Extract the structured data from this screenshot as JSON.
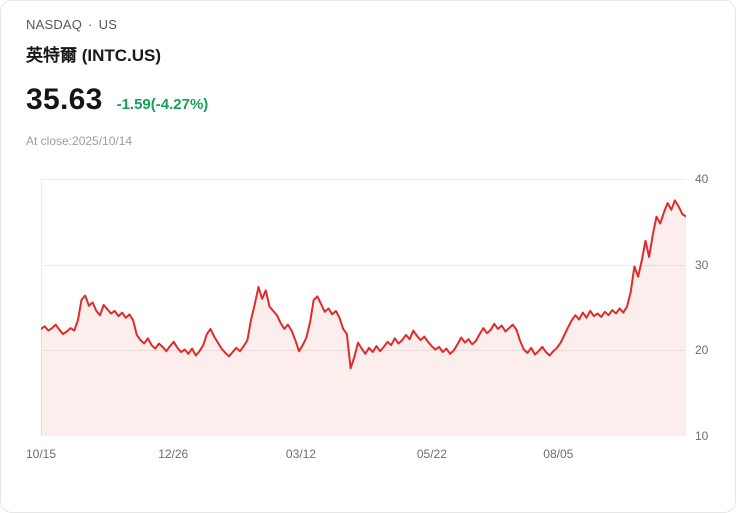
{
  "header": {
    "exchange": "NASDAQ",
    "separator": "·",
    "region": "US",
    "title": "英特爾 (INTC.US)"
  },
  "quote": {
    "price": "35.63",
    "change": "-1.59(-4.27%)",
    "change_color": "#18a058",
    "as_of": "At close:2025/10/14"
  },
  "chart_data": {
    "type": "line",
    "title": "",
    "xlabel": "",
    "ylabel": "",
    "ylim": [
      10,
      40
    ],
    "y_ticks": [
      "10",
      "20",
      "30",
      "40"
    ],
    "x_tick_labels": [
      "10/15",
      "12/26",
      "03/12",
      "05/22",
      "08/05"
    ],
    "x_tick_positions": [
      0.0,
      0.205,
      0.403,
      0.606,
      0.802
    ],
    "grid": true,
    "legend": false,
    "line_color": "#e12b2b",
    "fill_color": "rgba(225,43,43,0.08)",
    "values": [
      22.5,
      22.8,
      22.3,
      22.6,
      23.0,
      22.4,
      21.9,
      22.2,
      22.6,
      22.3,
      23.5,
      25.9,
      26.4,
      25.2,
      25.6,
      24.6,
      24.1,
      25.3,
      24.8,
      24.3,
      24.6,
      24.0,
      24.4,
      23.8,
      24.2,
      23.5,
      21.8,
      21.2,
      20.8,
      21.4,
      20.6,
      20.2,
      20.8,
      20.4,
      19.9,
      20.5,
      21.0,
      20.3,
      19.8,
      20.1,
      19.6,
      20.2,
      19.4,
      19.9,
      20.6,
      21.9,
      22.5,
      21.6,
      20.9,
      20.2,
      19.7,
      19.3,
      19.8,
      20.3,
      19.9,
      20.5,
      21.2,
      23.6,
      25.4,
      27.4,
      26.0,
      27.0,
      25.1,
      24.6,
      24.1,
      23.2,
      22.5,
      23.0,
      22.3,
      21.2,
      19.9,
      20.6,
      21.5,
      23.3,
      25.9,
      26.3,
      25.4,
      24.5,
      24.9,
      24.2,
      24.6,
      23.8,
      22.5,
      21.9,
      17.9,
      19.2,
      20.9,
      20.2,
      19.6,
      20.3,
      19.8,
      20.5,
      19.9,
      20.4,
      21.0,
      20.6,
      21.4,
      20.8,
      21.2,
      21.8,
      21.3,
      22.3,
      21.7,
      21.2,
      21.6,
      21.0,
      20.5,
      20.1,
      20.4,
      19.8,
      20.2,
      19.6,
      20.0,
      20.7,
      21.5,
      20.9,
      21.3,
      20.7,
      21.1,
      21.9,
      22.6,
      22.0,
      22.4,
      23.1,
      22.5,
      22.9,
      22.2,
      22.6,
      23.0,
      22.4,
      21.1,
      20.1,
      19.7,
      20.3,
      19.5,
      19.9,
      20.4,
      19.8,
      19.4,
      19.9,
      20.3,
      20.9,
      21.8,
      22.7,
      23.5,
      24.1,
      23.6,
      24.4,
      23.8,
      24.6,
      24.0,
      24.3,
      23.9,
      24.5,
      24.1,
      24.7,
      24.3,
      24.9,
      24.4,
      25.1,
      26.8,
      29.8,
      28.6,
      30.5,
      32.8,
      30.9,
      33.5,
      35.6,
      34.8,
      36.1,
      37.2,
      36.4,
      37.5,
      36.8,
      35.9,
      35.63
    ]
  }
}
